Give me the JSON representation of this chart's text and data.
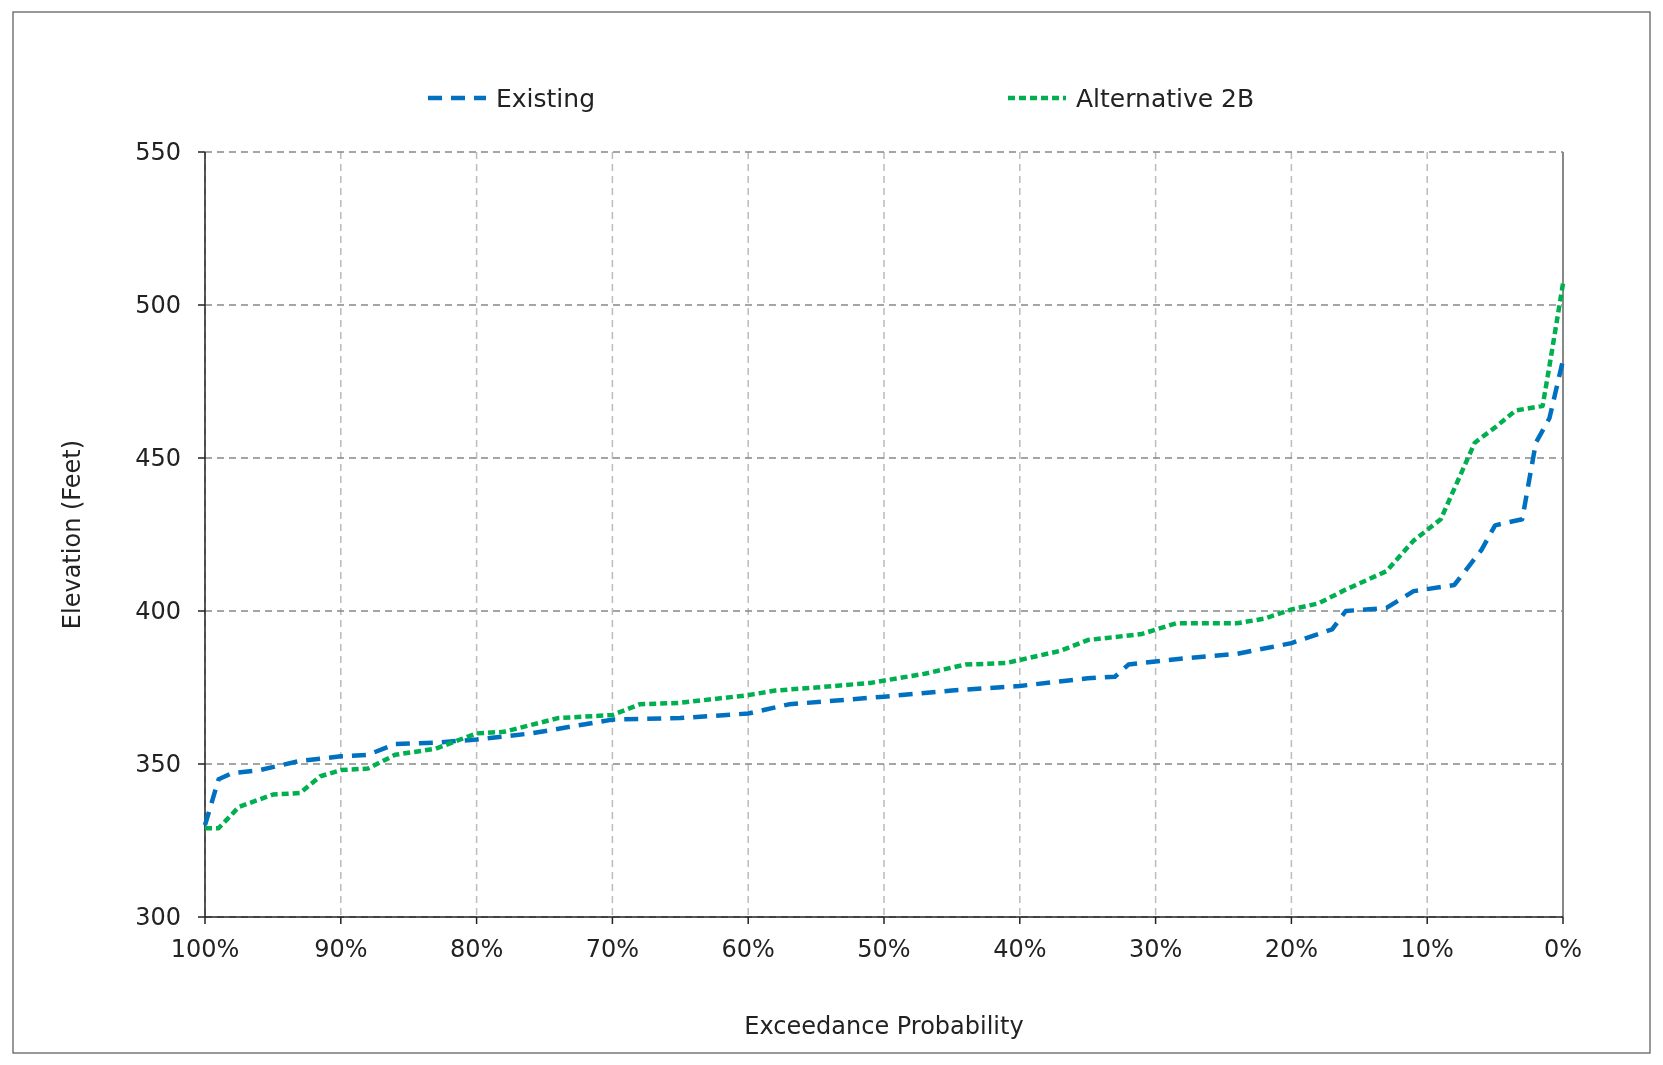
{
  "chart_data": {
    "type": "line",
    "xlabel": "Exceedance Probability",
    "ylabel": "Elevation (Feet)",
    "xlim": [
      100,
      0
    ],
    "xticks": [
      {
        "value": 100,
        "label": "100%"
      },
      {
        "value": 90,
        "label": "90%"
      },
      {
        "value": 80,
        "label": "80%"
      },
      {
        "value": 70,
        "label": "70%"
      },
      {
        "value": 60,
        "label": "60%"
      },
      {
        "value": 50,
        "label": "50%"
      },
      {
        "value": 40,
        "label": "40%"
      },
      {
        "value": 30,
        "label": "30%"
      },
      {
        "value": 20,
        "label": "20%"
      },
      {
        "value": 10,
        "label": "10%"
      },
      {
        "value": 0,
        "label": "0%"
      }
    ],
    "ylim": [
      300,
      550
    ],
    "yticks": [
      300,
      350,
      400,
      450,
      500,
      550
    ],
    "grid": true,
    "legend": "top",
    "series": [
      {
        "name": "Existing",
        "color": "#0070c0",
        "line_style": "dashed",
        "x": [
          100,
          99,
          98,
          96,
          93,
          90,
          88,
          86,
          83,
          80,
          76,
          72,
          70,
          65,
          60,
          57,
          50,
          45,
          40,
          35,
          33,
          32,
          28,
          24,
          20,
          17,
          16,
          13,
          11,
          8,
          6,
          5,
          3,
          2,
          1,
          0
        ],
        "values": [
          330,
          345,
          347,
          348,
          351,
          352.5,
          353,
          356.5,
          357,
          358,
          360,
          363,
          364.5,
          365,
          366.5,
          369.5,
          372,
          374,
          375.5,
          378,
          378.5,
          382.5,
          384.5,
          386,
          389.5,
          394,
          400,
          401,
          406.5,
          408.5,
          420,
          428,
          430,
          455,
          463,
          482
        ]
      },
      {
        "name": "Alternative 2B",
        "color": "#00b050",
        "line_style": "dotted",
        "x": [
          100,
          99,
          97.5,
          95,
          93,
          91.5,
          90,
          88,
          86,
          83,
          80,
          78,
          74,
          70,
          68,
          65,
          60,
          58,
          55,
          51,
          47,
          44,
          41,
          37,
          35,
          31,
          28.5,
          24,
          22,
          20,
          18,
          16,
          13,
          11,
          9,
          8,
          6.5,
          5,
          3.5,
          1.5,
          1,
          0
        ],
        "values": [
          329,
          329,
          336,
          340,
          340.5,
          346,
          348,
          348.5,
          353,
          355,
          360,
          360.5,
          365,
          366,
          369.5,
          370,
          372.5,
          374,
          375,
          376.5,
          379.5,
          382.5,
          383,
          387,
          390.5,
          392.5,
          396,
          396,
          397.5,
          400.5,
          402.5,
          407,
          413,
          423,
          430,
          440,
          455,
          460,
          465.5,
          467,
          480,
          507
        ]
      }
    ]
  }
}
